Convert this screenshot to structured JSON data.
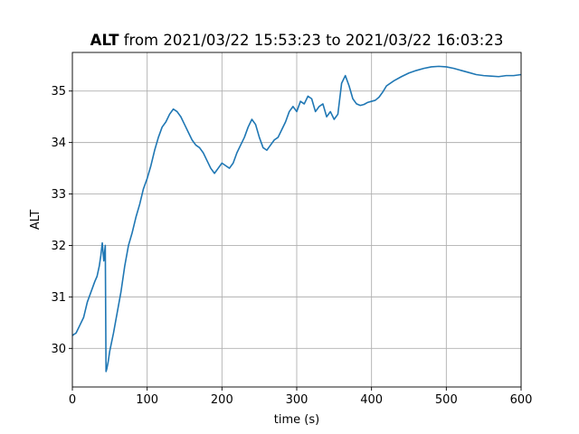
{
  "chart_data": {
    "type": "line",
    "title_bold": "ALT",
    "title_rest": " from 2021/03/22 15:53:23 to 2021/03/22 16:03:23",
    "xlabel": "time (s)",
    "ylabel": "ALT",
    "xlim": [
      0,
      600
    ],
    "ylim": [
      29.25,
      35.75
    ],
    "xticks": [
      0,
      100,
      200,
      300,
      400,
      500,
      600
    ],
    "yticks": [
      30,
      31,
      32,
      33,
      34,
      35
    ],
    "grid": true,
    "line_color": "#1f77b4",
    "series": [
      {
        "x": [
          0,
          5,
          10,
          15,
          20,
          25,
          30,
          33,
          36,
          38,
          40,
          42,
          44,
          45,
          46,
          48,
          50,
          55,
          60,
          65,
          70,
          75,
          80,
          85,
          90,
          95,
          100,
          105,
          110,
          115,
          120,
          125,
          130,
          135,
          140,
          145,
          150,
          155,
          160,
          165,
          170,
          175,
          180,
          185,
          190,
          195,
          200,
          205,
          210,
          215,
          220,
          225,
          230,
          235,
          240,
          245,
          250,
          255,
          260,
          265,
          270,
          275,
          280,
          285,
          290,
          295,
          300,
          305,
          310,
          315,
          320,
          325,
          330,
          335,
          340,
          345,
          350,
          355,
          360,
          365,
          370,
          375,
          380,
          385,
          390,
          395,
          400,
          405,
          410,
          415,
          420,
          430,
          440,
          450,
          460,
          470,
          480,
          490,
          500,
          510,
          520,
          530,
          540,
          550,
          560,
          570,
          580,
          590,
          600
        ],
        "y": [
          30.25,
          30.3,
          30.45,
          30.6,
          30.9,
          31.1,
          31.3,
          31.4,
          31.6,
          31.8,
          32.05,
          31.7,
          32.0,
          29.55,
          29.6,
          29.75,
          29.95,
          30.3,
          30.7,
          31.1,
          31.6,
          32.0,
          32.25,
          32.55,
          32.8,
          33.1,
          33.3,
          33.55,
          33.85,
          34.1,
          34.3,
          34.4,
          34.55,
          34.65,
          34.6,
          34.5,
          34.35,
          34.2,
          34.05,
          33.95,
          33.9,
          33.8,
          33.65,
          33.5,
          33.4,
          33.5,
          33.6,
          33.55,
          33.5,
          33.6,
          33.8,
          33.95,
          34.1,
          34.3,
          34.45,
          34.35,
          34.1,
          33.9,
          33.85,
          33.95,
          34.05,
          34.1,
          34.25,
          34.4,
          34.6,
          34.7,
          34.6,
          34.8,
          34.75,
          34.9,
          34.85,
          34.6,
          34.7,
          34.75,
          34.5,
          34.6,
          34.45,
          34.55,
          35.15,
          35.3,
          35.1,
          34.85,
          34.75,
          34.72,
          34.74,
          34.78,
          34.8,
          34.82,
          34.88,
          34.98,
          35.1,
          35.2,
          35.28,
          35.35,
          35.4,
          35.44,
          35.47,
          35.48,
          35.47,
          35.44,
          35.4,
          35.36,
          35.32,
          35.3,
          35.29,
          35.28,
          35.3,
          35.3,
          35.32
        ]
      }
    ]
  }
}
